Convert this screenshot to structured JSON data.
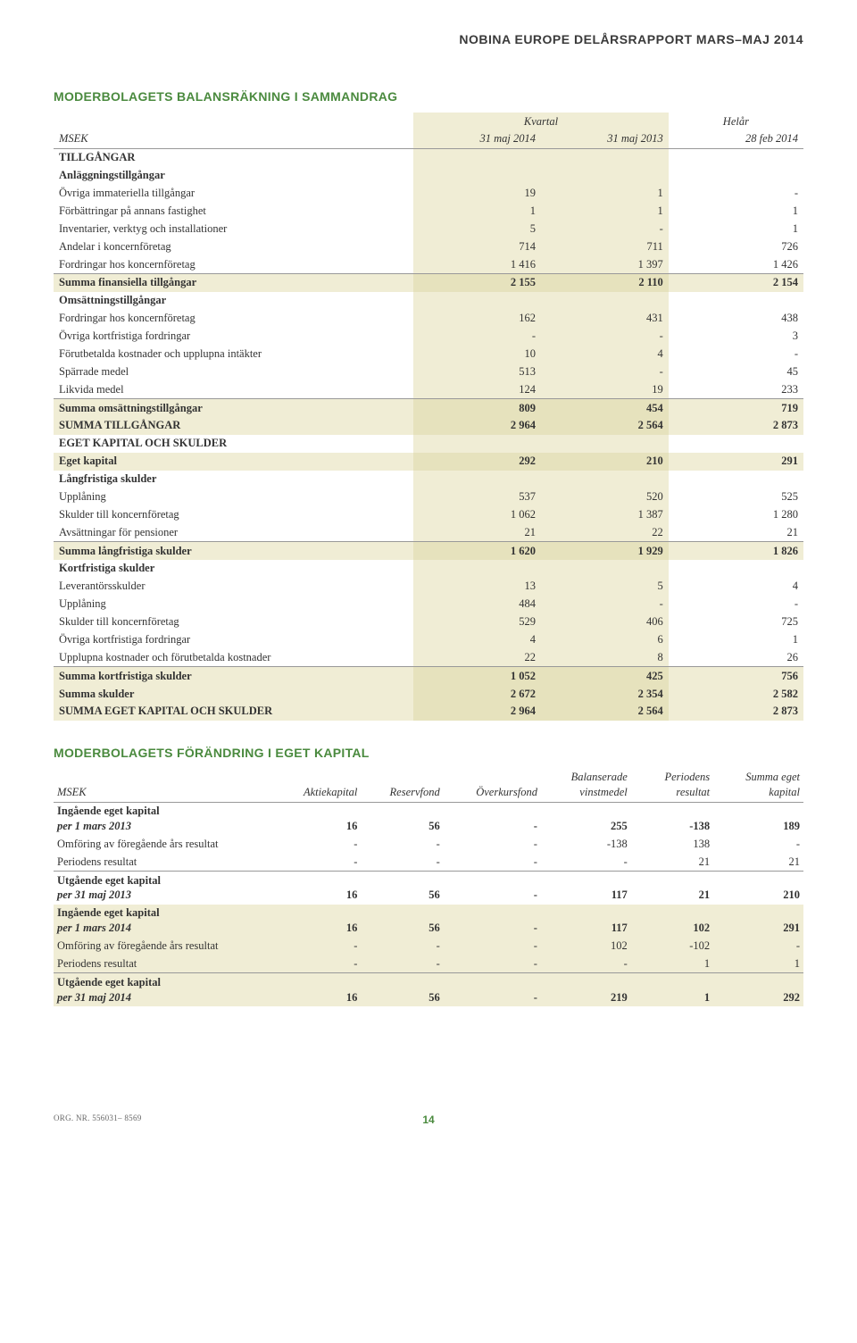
{
  "header": "NOBINA EUROPE DELÅRSRAPPORT MARS–MAJ 2014",
  "balance": {
    "title": "MODERBOLAGETS BALANSRÄKNING I SAMMANDRAG",
    "unit": "MSEK",
    "kvartal": "Kvartal",
    "helar": "Helår",
    "cols": [
      "31 maj 2014",
      "31  maj 2013",
      "28 feb 2014"
    ],
    "sections": {
      "tillg_head": "TILLGÅNGAR",
      "anlagg_head": "Anläggningstillgångar",
      "rows_anlagg": [
        {
          "label": "Övriga immateriella tillgångar",
          "v": [
            "19",
            "1",
            "-"
          ]
        },
        {
          "label": "Förbättringar på annans fastighet",
          "v": [
            "1",
            "1",
            "1"
          ]
        },
        {
          "label": "Inventarier, verktyg och installationer",
          "v": [
            "5",
            "-",
            "1"
          ]
        },
        {
          "label": "Andelar i koncernföretag",
          "v": [
            "714",
            "711",
            "726"
          ]
        },
        {
          "label": "Fordringar hos koncernföretag",
          "v": [
            "1 416",
            "1 397",
            "1 426"
          ]
        }
      ],
      "sum_anlagg": {
        "label": "Summa finansiella tillgångar",
        "v": [
          "2 155",
          "2 110",
          "2 154"
        ]
      },
      "oms_head": "Omsättningstillgångar",
      "rows_oms": [
        {
          "label": "Fordringar hos koncernföretag",
          "v": [
            "162",
            "431",
            "438"
          ]
        },
        {
          "label": "Övriga kortfristiga fordringar",
          "v": [
            "-",
            "-",
            "3"
          ]
        },
        {
          "label": "Förutbetalda kostnader och upplupna intäkter",
          "v": [
            "10",
            "4",
            "-"
          ]
        },
        {
          "label": "Spärrade medel",
          "v": [
            "513",
            "-",
            "45"
          ]
        },
        {
          "label": "Likvida medel",
          "v": [
            "124",
            "19",
            "233"
          ]
        }
      ],
      "sum_oms": {
        "label": "Summa omsättningstillgångar",
        "v": [
          "809",
          "454",
          "719"
        ]
      },
      "sum_tillg": {
        "label": "SUMMA TILLGÅNGAR",
        "v": [
          "2 964",
          "2 564",
          "2 873"
        ]
      },
      "eks_head": "EGET KAPITAL OCH SKULDER",
      "eget_kapital": {
        "label": "Eget kapital",
        "v": [
          "292",
          "210",
          "291"
        ]
      },
      "lang_head": "Långfristiga skulder",
      "rows_lang": [
        {
          "label": "Upplåning",
          "v": [
            "537",
            "520",
            "525"
          ]
        },
        {
          "label": "Skulder till koncernföretag",
          "v": [
            "1 062",
            "1 387",
            "1 280"
          ]
        },
        {
          "label": "Avsättningar för pensioner",
          "v": [
            "21",
            "22",
            "21"
          ]
        }
      ],
      "sum_lang": {
        "label": "Summa långfristiga skulder",
        "v": [
          "1 620",
          "1 929",
          "1 826"
        ]
      },
      "kort_head": "Kortfristiga skulder",
      "rows_kort": [
        {
          "label": "Leverantörsskulder",
          "v": [
            "13",
            "5",
            "4"
          ]
        },
        {
          "label": "Upplåning",
          "v": [
            "484",
            "-",
            "-"
          ]
        },
        {
          "label": "Skulder till koncernföretag",
          "v": [
            "529",
            "406",
            "725"
          ]
        },
        {
          "label": "Övriga kortfristiga fordringar",
          "v": [
            "4",
            "6",
            "1"
          ]
        },
        {
          "label": "Upplupna kostnader och förutbetalda kostnader",
          "v": [
            "22",
            "8",
            "26"
          ]
        }
      ],
      "sum_kort": {
        "label": "Summa kortfristiga skulder",
        "v": [
          "1 052",
          "425",
          "756"
        ]
      },
      "sum_skulder": {
        "label": "Summa skulder",
        "v": [
          "2 672",
          "2 354",
          "2 582"
        ]
      },
      "sum_eks": {
        "label": "SUMMA EGET KAPITAL OCH SKULDER",
        "v": [
          "2 964",
          "2 564",
          "2 873"
        ]
      }
    }
  },
  "equity": {
    "title": "MODERBOLAGETS FÖRÄNDRING I EGET KAPITAL",
    "unit": "MSEK",
    "cols": [
      "Aktiekapital",
      "Reservfond",
      "Överkursfond",
      "Balanserade vinstmedel",
      "Periodens resultat",
      "Summa eget kapital"
    ],
    "rows": [
      {
        "label": "Ingående eget kapital\nper 1 mars 2013",
        "bold": true,
        "v": [
          "16",
          "56",
          "-",
          "255",
          "-138",
          "189"
        ]
      },
      {
        "label": "Omföring av föregående års resultat",
        "v": [
          "-",
          "-",
          "-",
          "-138",
          "138",
          "-"
        ]
      },
      {
        "label": "Periodens resultat",
        "under": true,
        "v": [
          "-",
          "-",
          "-",
          "-",
          "21",
          "21"
        ]
      },
      {
        "label": "Utgående eget kapital\nper 31 maj 2013",
        "bold": true,
        "v": [
          "16",
          "56",
          "-",
          "117",
          "21",
          "210"
        ]
      }
    ],
    "rows2": [
      {
        "label": "Ingående eget kapital\nper 1 mars 2014",
        "bold": true,
        "v": [
          "16",
          "56",
          "-",
          "117",
          "102",
          "291"
        ]
      },
      {
        "label": "Omföring av föregående års resultat",
        "v": [
          "-",
          "-",
          "-",
          "102",
          "-102",
          "-"
        ]
      },
      {
        "label": "Periodens resultat",
        "under": true,
        "v": [
          "-",
          "-",
          "-",
          "-",
          "1",
          "1"
        ]
      },
      {
        "label": "Utgående eget kapital\nper 31 maj 2014",
        "bold": true,
        "v": [
          "16",
          "56",
          "-",
          "219",
          "1",
          "292"
        ]
      }
    ]
  },
  "footer": {
    "org": "ORG. NR. 556031– 8569",
    "page": "14"
  }
}
